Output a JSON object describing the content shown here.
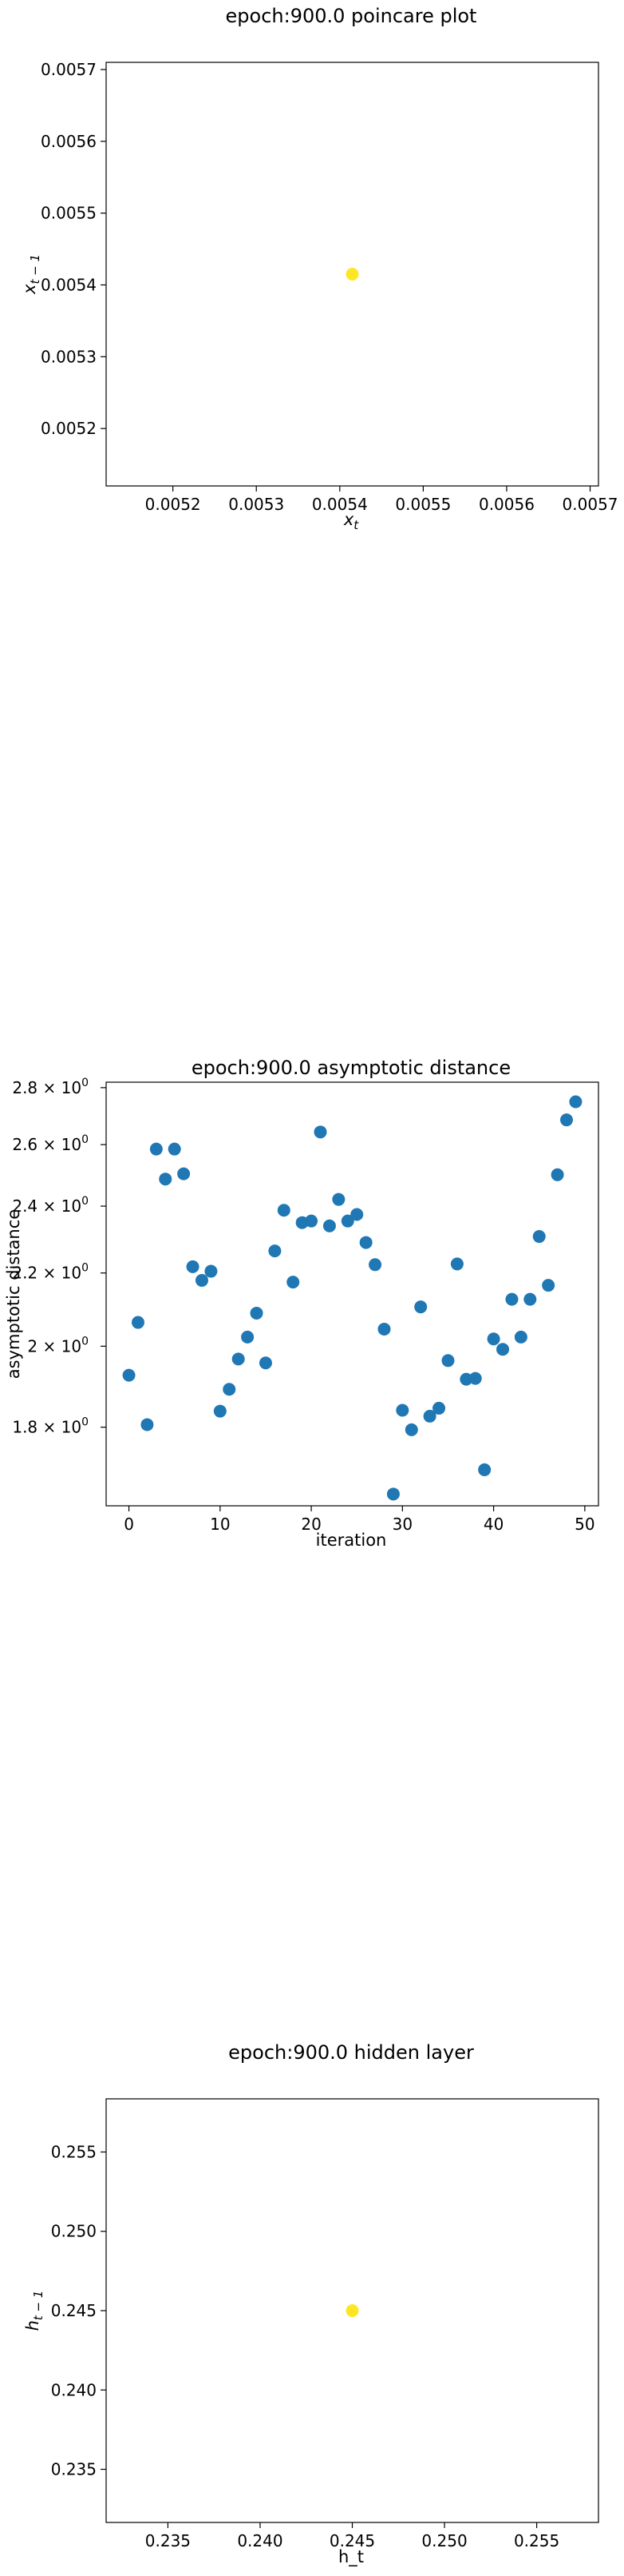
{
  "colors": {
    "scatter_blue": "#1f77b4",
    "highlight_yellow": "#fde725"
  },
  "chart_data": [
    {
      "type": "scatter",
      "title": "epoch:900.0 poincare plot",
      "xlabel": "x_t",
      "ylabel": "x_{t-1}",
      "xlim": [
        0.00512,
        0.00571
      ],
      "ylim": [
        0.00512,
        0.00571
      ],
      "xticks": [
        {
          "value": 0.0052,
          "label": "0.0052"
        },
        {
          "value": 0.0053,
          "label": "0.0053"
        },
        {
          "value": 0.0054,
          "label": "0.0054"
        },
        {
          "value": 0.0055,
          "label": "0.0055"
        },
        {
          "value": 0.0056,
          "label": "0.0056"
        },
        {
          "value": 0.0057,
          "label": "0.0057"
        }
      ],
      "yticks": [
        {
          "value": 0.0052,
          "label": "0.0052"
        },
        {
          "value": 0.0053,
          "label": "0.0053"
        },
        {
          "value": 0.0054,
          "label": "0.0054"
        },
        {
          "value": 0.0055,
          "label": "0.0055"
        },
        {
          "value": 0.0056,
          "label": "0.0056"
        },
        {
          "value": 0.0057,
          "label": "0.0057"
        }
      ],
      "points": [
        {
          "x": 0.005415,
          "y": 0.005415
        }
      ],
      "point_color": "#fde725"
    },
    {
      "type": "scatter",
      "title": "epoch:900.0 asymptotic distance",
      "xlabel": "iteration",
      "ylabel": "asymptotic distance",
      "yscale": "log",
      "xlim": [
        -2.5,
        51.5
      ],
      "ylim": [
        1.625,
        2.82
      ],
      "xticks": [
        {
          "value": 0,
          "label": "0"
        },
        {
          "value": 10,
          "label": "10"
        },
        {
          "value": 20,
          "label": "20"
        },
        {
          "value": 30,
          "label": "30"
        },
        {
          "value": 40,
          "label": "40"
        },
        {
          "value": 50,
          "label": "50"
        }
      ],
      "yticks": [
        {
          "value": 1.8,
          "label": "1.8 × 10",
          "exp": "0"
        },
        {
          "value": 2.0,
          "label": "2 × 10",
          "exp": "0"
        },
        {
          "value": 2.2,
          "label": "2.2 × 10",
          "exp": "0"
        },
        {
          "value": 2.4,
          "label": "2.4 × 10",
          "exp": "0"
        },
        {
          "value": 2.6,
          "label": "2.6 × 10",
          "exp": "0"
        },
        {
          "value": 2.8,
          "label": "2.8 × 10",
          "exp": "0"
        }
      ],
      "x": [
        0,
        1,
        2,
        3,
        4,
        5,
        6,
        7,
        8,
        9,
        10,
        11,
        12,
        13,
        14,
        15,
        16,
        17,
        18,
        19,
        20,
        21,
        22,
        23,
        24,
        25,
        26,
        27,
        28,
        29,
        30,
        31,
        32,
        33,
        34,
        35,
        36,
        37,
        38,
        39,
        40,
        41,
        42,
        43,
        44,
        45,
        46,
        47,
        48,
        49
      ],
      "values": [
        1.926,
        2.063,
        1.806,
        2.585,
        2.486,
        2.585,
        2.503,
        2.218,
        2.179,
        2.205,
        1.838,
        1.891,
        1.967,
        2.024,
        2.088,
        1.957,
        2.264,
        2.387,
        2.174,
        2.349,
        2.354,
        2.643,
        2.339,
        2.421,
        2.354,
        2.374,
        2.289,
        2.224,
        2.045,
        1.65,
        1.84,
        1.794,
        2.105,
        1.826,
        1.845,
        1.963,
        2.226,
        1.916,
        1.918,
        1.703,
        2.019,
        1.992,
        2.126,
        2.024,
        2.126,
        2.307,
        2.165,
        2.5,
        2.685,
        2.749
      ],
      "point_color": "#1f77b4"
    },
    {
      "type": "scatter",
      "title": "epoch:900.0 hidden layer",
      "xlabel": "h_t",
      "ylabel": "h_{t-1}",
      "xlim": [
        0.23165,
        0.25835
      ],
      "ylim": [
        0.23165,
        0.25835
      ],
      "xticks": [
        {
          "value": 0.235,
          "label": "0.235"
        },
        {
          "value": 0.24,
          "label": "0.240"
        },
        {
          "value": 0.245,
          "label": "0.245"
        },
        {
          "value": 0.25,
          "label": "0.250"
        },
        {
          "value": 0.255,
          "label": "0.255"
        }
      ],
      "yticks": [
        {
          "value": 0.235,
          "label": "0.235"
        },
        {
          "value": 0.24,
          "label": "0.240"
        },
        {
          "value": 0.245,
          "label": "0.245"
        },
        {
          "value": 0.25,
          "label": "0.250"
        },
        {
          "value": 0.255,
          "label": "0.255"
        }
      ],
      "points": [
        {
          "x": 0.245,
          "y": 0.245
        }
      ],
      "point_color": "#fde725"
    }
  ]
}
